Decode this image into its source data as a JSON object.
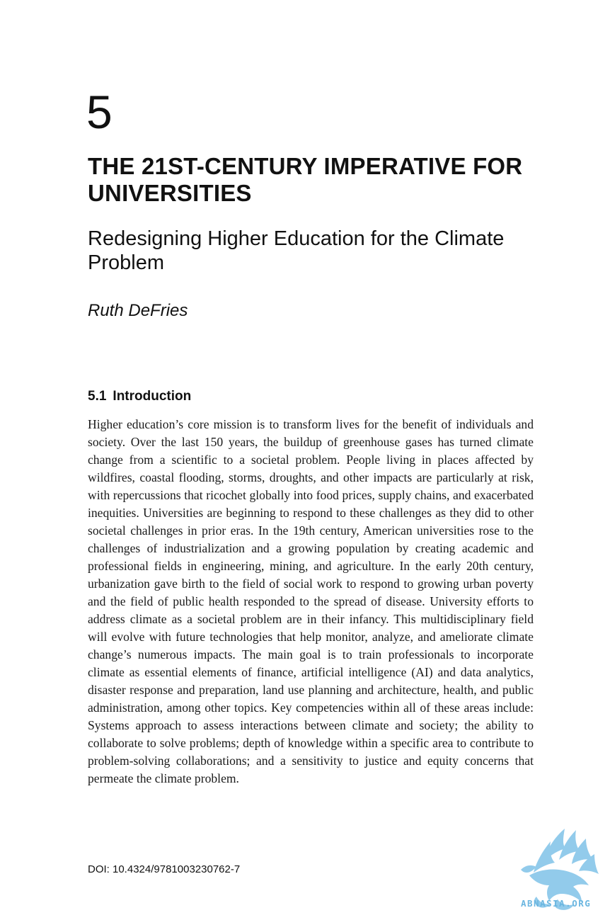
{
  "chapter": {
    "number": "5",
    "title": "THE 21ST-CENTURY IMPERATIVE FOR UNIVERSITIES",
    "subtitle": "Redesigning Higher Education for the Climate Problem",
    "author": "Ruth DeFries"
  },
  "section": {
    "number": "5.1",
    "title": "Introduction",
    "body": "Higher education’s core mission is to transform lives for the benefit of individuals and society. Over the last 150 years, the buildup of greenhouse gases has turned climate change from a scientific to a societal problem. People living in places affected by wildfires, coastal flooding, storms, droughts, and other impacts are particularly at risk, with repercussions that ricochet globally into food prices, supply chains, and exacerbated inequities. Universities are beginning to respond to these challenges as they did to other societal challenges in prior eras. In the 19th century, American universities rose to the challenges of industrialization and a growing population by creating academic and professional fields in engi­neering, mining, and agriculture. In the early 20th century, urbanization gave birth to the field of social work to respond to growing urban poverty and the field of public health responded to the spread of disease. University efforts to address climate as a societal problem are in their infancy. This multidisciplinary field will evolve with future technologies that help monitor, analyze, and ame­liorate climate change’s numerous impacts. The main goal is to train profession­als to incorporate climate as essential elements of finance, artificial intelligence (AI) and data analytics, disaster response and preparation, land use planning and architecture, health, and public administration, among other topics. Key compe­tencies within all of these areas include: Systems approach to assess interactions between climate and society; the ability to collaborate to solve problems; depth of knowledge within a specific area to contribute to problem-solving collabora­tions; and a sensitivity to justice and equity concerns that permeate the climate problem."
  },
  "footer": {
    "doi": "DOI: 10.4324/9781003230762-7"
  },
  "watermark": {
    "text": "ABNASIA.ORG",
    "icon": "griffin-logo-icon",
    "color": "#6bb6e0"
  }
}
